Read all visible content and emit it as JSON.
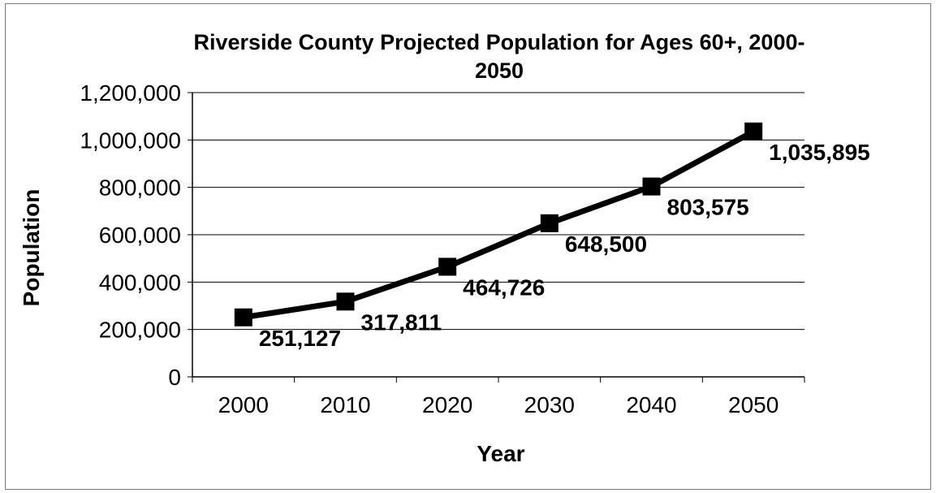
{
  "chart_data": {
    "type": "line",
    "title": "Riverside County Projected Population for Ages 60+, 2000-2050",
    "title_lines": [
      "Riverside County Projected Population for Ages 60+, 2000-",
      "2050"
    ],
    "xlabel": "Year",
    "ylabel": "Population",
    "categories": [
      "2000",
      "2010",
      "2020",
      "2030",
      "2040",
      "2050"
    ],
    "series": [
      {
        "values": [
          251127,
          317811,
          464726,
          648500,
          803575,
          1035895
        ],
        "data_labels": [
          "251,127",
          "317,811",
          "464,726",
          "648,500",
          "803,575",
          "1,035,895"
        ],
        "color": "#000000",
        "marker": "square"
      }
    ],
    "ylim": [
      0,
      1200000
    ],
    "y_ticks": [
      0,
      200000,
      400000,
      600000,
      800000,
      1000000,
      1200000
    ],
    "y_tick_labels": [
      "0",
      "200,000",
      "400,000",
      "600,000",
      "800,000",
      "1,000,000",
      "1,200,000"
    ],
    "grid": true,
    "legend": false
  }
}
